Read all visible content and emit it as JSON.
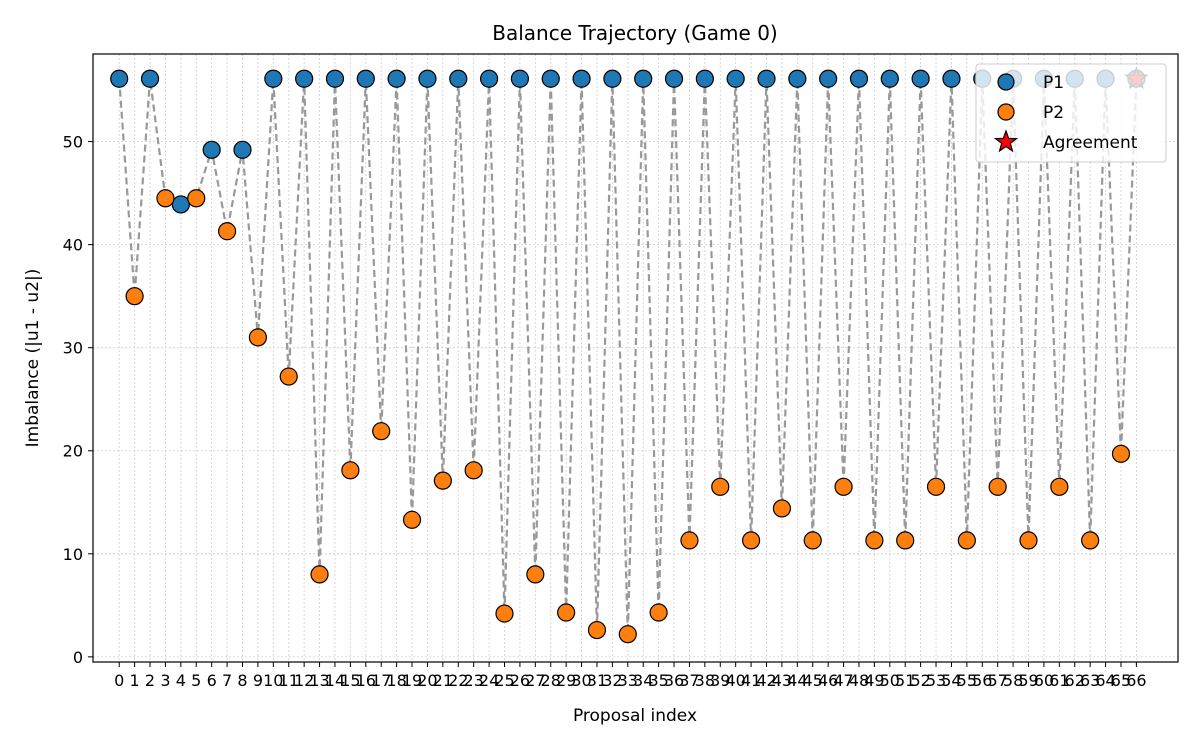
{
  "chart_data": {
    "type": "scatter",
    "title": "Balance Trajectory (Game 0)",
    "xlabel": "Proposal index",
    "ylabel": "Imbalance (|u1 - u2|)",
    "xlim": [
      -1.7,
      68.7
    ],
    "ylim": [
      -0.5,
      58.5
    ],
    "x_ticks": [
      0,
      1,
      2,
      3,
      4,
      5,
      6,
      7,
      8,
      9,
      10,
      11,
      12,
      13,
      14,
      15,
      16,
      17,
      18,
      19,
      20,
      21,
      22,
      23,
      24,
      25,
      26,
      27,
      28,
      29,
      30,
      31,
      32,
      33,
      34,
      35,
      36,
      37,
      38,
      39,
      40,
      41,
      42,
      43,
      44,
      45,
      46,
      47,
      48,
      49,
      50,
      51,
      52,
      53,
      54,
      55,
      56,
      57,
      58,
      59,
      60,
      61,
      62,
      63,
      64,
      65,
      66
    ],
    "y_ticks": [
      0,
      10,
      20,
      30,
      40,
      50
    ],
    "grid": true,
    "legend_position": "top-right",
    "line_color": "#999999",
    "x": [
      0,
      1,
      2,
      3,
      4,
      5,
      6,
      7,
      8,
      9,
      10,
      11,
      12,
      13,
      14,
      15,
      16,
      17,
      18,
      19,
      20,
      21,
      22,
      23,
      24,
      25,
      26,
      27,
      28,
      29,
      30,
      31,
      32,
      33,
      34,
      35,
      36,
      37,
      38,
      39,
      40,
      41,
      42,
      43,
      44,
      45,
      46,
      47,
      48,
      49,
      50,
      51,
      52,
      53,
      54,
      55,
      56,
      57,
      58,
      59,
      60,
      61,
      62,
      63,
      64,
      65,
      66
    ],
    "values": [
      56.1,
      35.0,
      56.1,
      44.5,
      43.9,
      44.5,
      49.2,
      41.3,
      49.2,
      31.0,
      56.1,
      27.2,
      56.1,
      8.0,
      56.1,
      18.1,
      56.1,
      21.9,
      56.1,
      13.3,
      56.1,
      17.1,
      56.1,
      18.1,
      56.1,
      4.2,
      56.1,
      8.0,
      56.1,
      4.3,
      56.1,
      2.6,
      56.1,
      2.2,
      56.1,
      4.3,
      56.1,
      11.3,
      56.1,
      16.5,
      56.1,
      11.3,
      56.1,
      14.4,
      56.1,
      11.3,
      56.1,
      16.5,
      56.1,
      11.3,
      56.1,
      11.3,
      56.1,
      16.5,
      56.1,
      11.3,
      56.1,
      16.5,
      56.1,
      11.3,
      56.1,
      16.5,
      56.1,
      11.3,
      56.1,
      19.7,
      56.1
    ],
    "series": [
      {
        "name": "P1",
        "color": "#1f77b4",
        "marker": "circle",
        "indices": [
          0,
          2,
          4,
          6,
          8,
          10,
          12,
          14,
          16,
          18,
          20,
          22,
          24,
          26,
          28,
          30,
          32,
          34,
          36,
          38,
          40,
          42,
          44,
          46,
          48,
          50,
          52,
          54,
          56,
          58,
          60,
          62,
          64,
          66
        ]
      },
      {
        "name": "P2",
        "color": "#ff7f0e",
        "marker": "circle",
        "indices": [
          1,
          3,
          5,
          7,
          9,
          11,
          13,
          15,
          17,
          19,
          21,
          23,
          25,
          27,
          29,
          31,
          33,
          35,
          37,
          39,
          41,
          43,
          45,
          47,
          49,
          51,
          53,
          55,
          57,
          59,
          61,
          63,
          65
        ]
      },
      {
        "name": "Agreement",
        "color": "#ff0000",
        "marker": "star",
        "x": [
          66
        ],
        "values": [
          56.1
        ]
      }
    ]
  }
}
